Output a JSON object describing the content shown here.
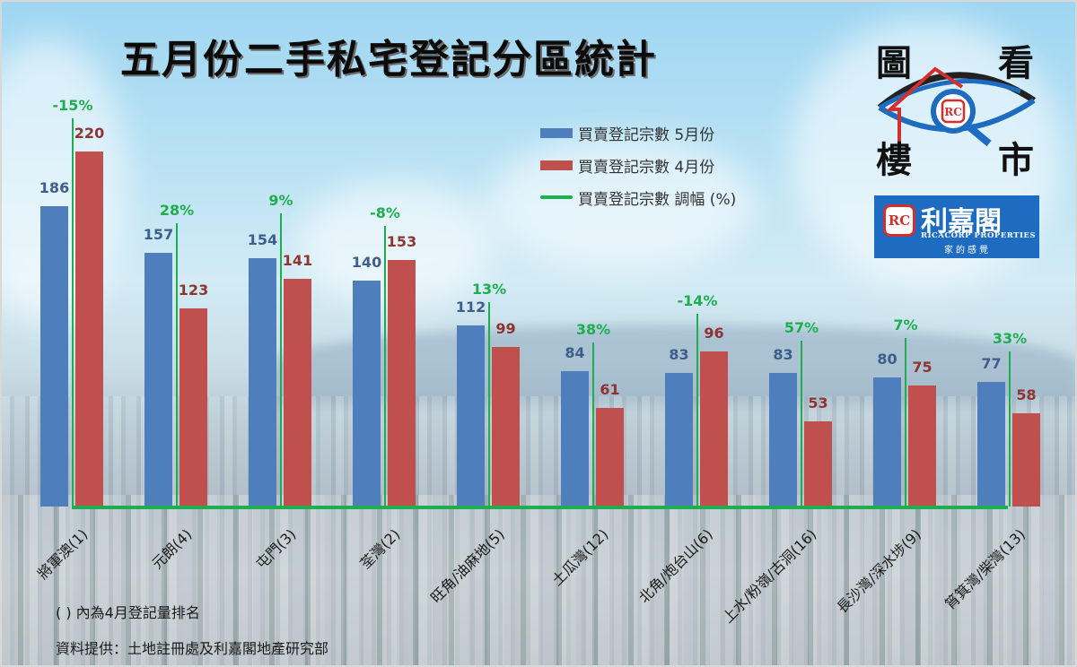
{
  "title": "五月份二手私宅登記分區統計",
  "legend": {
    "may": "買賣登記宗數 5月份",
    "april": "買賣登記宗數 4月份",
    "change": "買賣登記宗數 調幅 (%)"
  },
  "colors": {
    "may": "#4e7ebc",
    "april": "#c0504d",
    "change": "#1fae4f"
  },
  "logo": {
    "top_left": "圖",
    "top_right": "看",
    "bottom_left": "樓",
    "bottom_right": "市",
    "badge": "RC",
    "brand_name": "利嘉閣",
    "brand_en": "RICACORP PROPERTIES",
    "slogan": "家的感覺"
  },
  "notes": {
    "ranking_note": "(  ) 內為4月登記量排名",
    "source": "資料提供：土地註冊處及利嘉閣地產研究部"
  },
  "chart_data": {
    "type": "bar",
    "title": "五月份二手私宅登記分區統計",
    "xlabel": "",
    "ylabel": "",
    "grid": false,
    "legend_position": "top-right",
    "categories": [
      "將軍澳(1)",
      "元朗(4)",
      "屯門(3)",
      "荃灣(2)",
      "旺角/油麻地(5)",
      "土瓜灣(12)",
      "北角/炮台山(6)",
      "上水/粉嶺/古洞(16)",
      "長沙灣/深水埗(9)",
      "筲箕灣/柴灣(13)"
    ],
    "series": [
      {
        "name": "買賣登記宗數 5月份",
        "type": "bar",
        "values": [
          186,
          157,
          154,
          140,
          112,
          84,
          83,
          83,
          80,
          77
        ]
      },
      {
        "name": "買賣登記宗數 4月份",
        "type": "bar",
        "values": [
          220,
          123,
          141,
          153,
          99,
          61,
          96,
          53,
          75,
          58
        ]
      },
      {
        "name": "買賣登記宗數 調幅 (%)",
        "type": "line",
        "values": [
          -15,
          28,
          9,
          -8,
          13,
          38,
          -14,
          57,
          7,
          33
        ]
      }
    ],
    "value_labels": {
      "may": [
        "186",
        "157",
        "154",
        "140",
        "112",
        "84",
        "83",
        "83",
        "80",
        "77"
      ],
      "april": [
        "220",
        "123",
        "141",
        "153",
        "99",
        "61",
        "96",
        "53",
        "75",
        "58"
      ],
      "change": [
        "-15%",
        "28%",
        "9%",
        "-8%",
        "13%",
        "38%",
        "-14%",
        "57%",
        "7%",
        "33%"
      ]
    },
    "ylim": [
      0,
      230
    ]
  }
}
